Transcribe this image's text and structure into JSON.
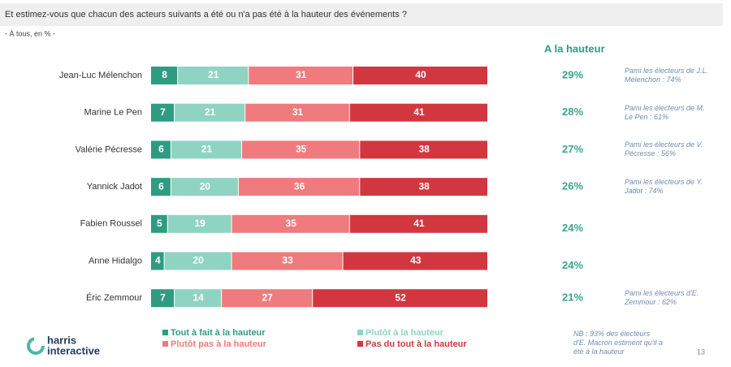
{
  "chart_data": {
    "type": "bar",
    "orientation": "horizontal",
    "stacked": true,
    "title": "Et estimez-vous que chacun des acteurs suivants a été ou n'a pas été à la hauteur des événements ?",
    "subtitle": "- À tous, en % -",
    "categories": [
      "Jean-Luc Mélenchon",
      "Marine Le Pen",
      "Valérie Pécresse",
      "Yannick Jadot",
      "Fabien Roussel",
      "Anne Hidalgo",
      "Éric Zemmour"
    ],
    "series": [
      {
        "name": "Tout à fait à la hauteur",
        "color": "#2f9c82",
        "values": [
          8,
          7,
          6,
          6,
          5,
          4,
          7
        ]
      },
      {
        "name": "Plutôt à la hauteur",
        "color": "#8fd4c3",
        "values": [
          21,
          21,
          21,
          20,
          19,
          20,
          14
        ]
      },
      {
        "name": "Plutôt pas à la hauteur",
        "color": "#ef7b7e",
        "values": [
          31,
          31,
          35,
          36,
          35,
          33,
          27
        ]
      },
      {
        "name": "Pas du tout à la hauteur",
        "color": "#d2373f",
        "values": [
          40,
          41,
          38,
          38,
          41,
          43,
          52
        ]
      }
    ],
    "summary": {
      "title": "A la hauteur",
      "values": [
        29,
        28,
        27,
        26,
        24,
        24,
        21
      ],
      "value_labels": [
        "29%",
        "28%",
        "27%",
        "26%",
        "24%",
        "24%",
        "21%"
      ]
    },
    "notes": [
      "Pami les électeurs de J.L. Mélenchon : 74%",
      "Pami les électeurs de M. Le Pen : 61%",
      "Pami les électeurs de V. Pécresse : 56%",
      "Pami les électeurs de Y. Jadot : 74%",
      null,
      null,
      "Pami les électeurs d'E. Zemmour : 62%"
    ],
    "footnote": "NB : 93% des électeurs d'E. Macron estiment qu'il a été à la hauteur",
    "brand": [
      "harris",
      "interactive"
    ],
    "page_number": "13"
  }
}
